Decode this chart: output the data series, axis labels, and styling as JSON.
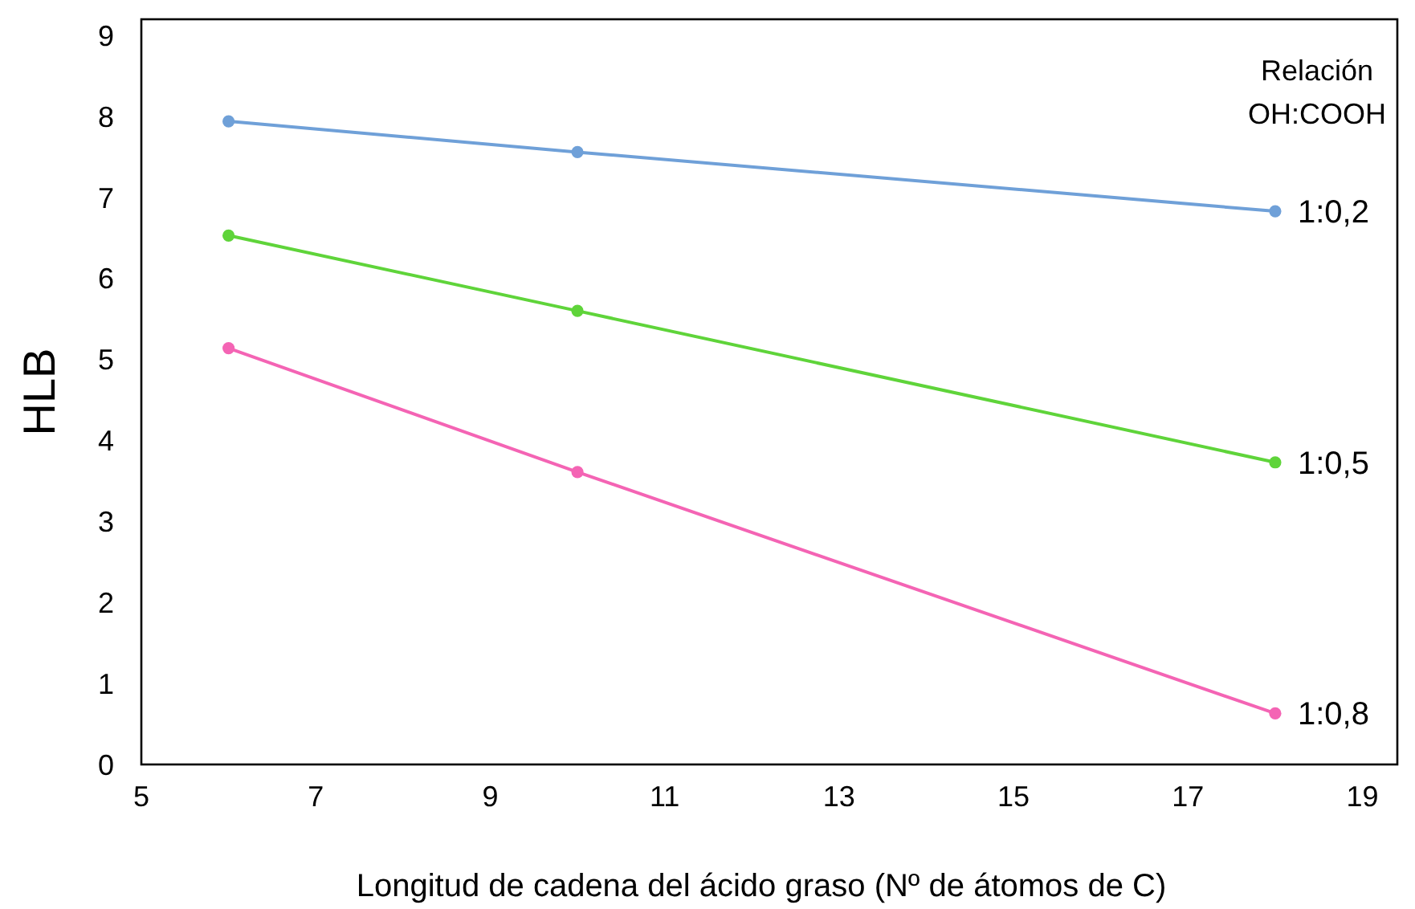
{
  "chart_data": {
    "type": "line",
    "xlabel": "Longitud de cadena del ácido graso (Nº de átomos de C)",
    "ylabel": "HLB",
    "legend_title": "Relación\nOH:COOH",
    "x": [
      6,
      10,
      18
    ],
    "series": [
      {
        "name": "1:0,2",
        "color": "#6fa0d8",
        "values": [
          7.94,
          7.56,
          6.83
        ]
      },
      {
        "name": "1:0,5",
        "color": "#5fd43a",
        "values": [
          6.53,
          5.6,
          3.73
        ]
      },
      {
        "name": "1:0,8",
        "color": "#f464b4",
        "values": [
          5.14,
          3.61,
          0.63
        ]
      }
    ],
    "xlim": [
      5,
      19.4
    ],
    "ylim": [
      0,
      9.2
    ],
    "xticks": [
      5,
      7,
      9,
      11,
      13,
      15,
      17,
      19
    ],
    "yticks": [
      0,
      1,
      2,
      3,
      4,
      5,
      6,
      7,
      8,
      9
    ],
    "grid": false,
    "marker": "circle",
    "line_style": "solid"
  }
}
